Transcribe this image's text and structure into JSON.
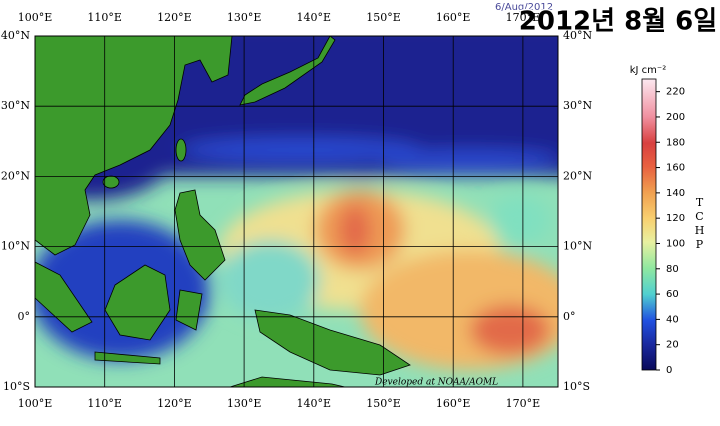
{
  "header": {
    "date": "6/Aug/2012",
    "title": "2012년 8월 6일"
  },
  "map": {
    "lon_labels": [
      "100°E",
      "110°E",
      "120°E",
      "130°E",
      "140°E",
      "150°E",
      "160°E",
      "170°E"
    ],
    "lat_labels": [
      "40°N",
      "30°N",
      "20°N",
      "10°N",
      "0°",
      "10°S"
    ],
    "credit": "Developed at NOAA/AOML"
  },
  "colorbar": {
    "unit": "kJ cm⁻²",
    "label": "TCHP",
    "lim": [
      0,
      230
    ],
    "ticks": [
      0,
      20,
      40,
      60,
      80,
      100,
      120,
      140,
      160,
      180,
      200,
      220
    ]
  }
}
